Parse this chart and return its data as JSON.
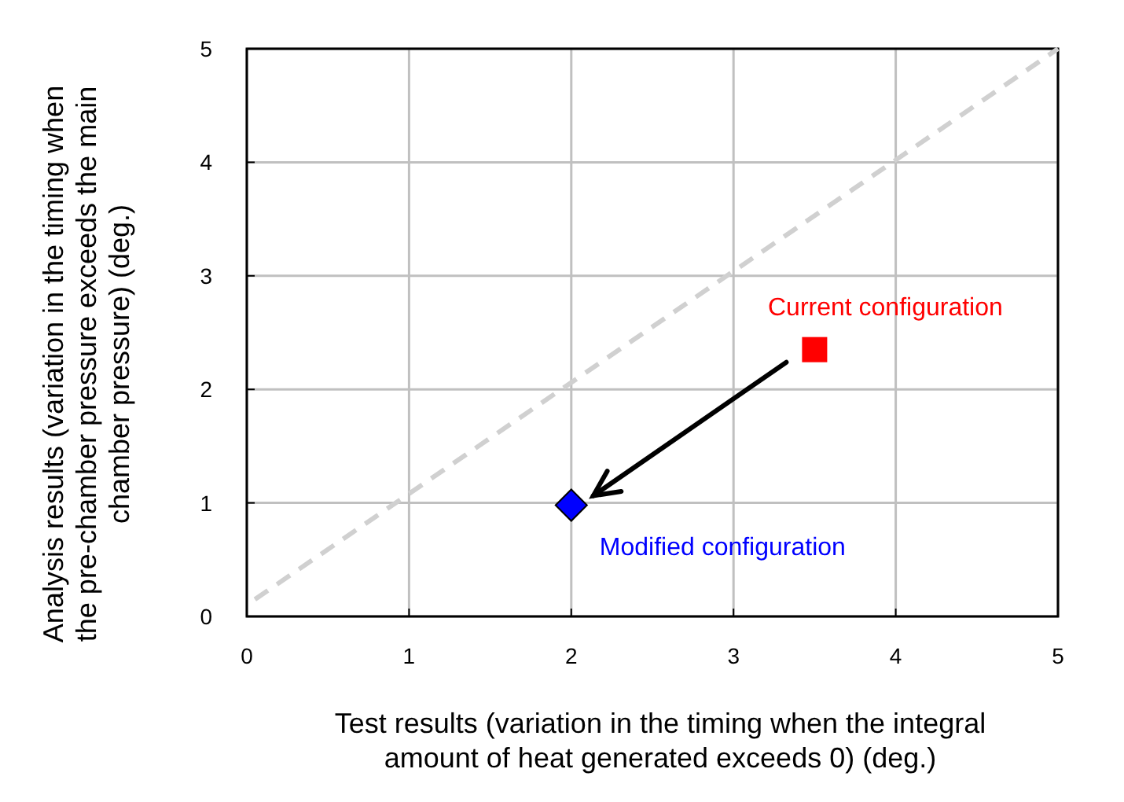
{
  "chart_data": {
    "type": "scatter",
    "xlabel": "Test results (variation in the timing when the integral amount of heat generated exceeds 0) (deg.)",
    "ylabel": "Analysis results (variation in the timing when the pre-chamber pressure exceeds the main chamber pressure) (deg.)",
    "xlim": [
      0,
      5
    ],
    "ylim": [
      0,
      5
    ],
    "xticks": [
      0,
      1,
      2,
      3,
      4,
      5
    ],
    "yticks": [
      0,
      1,
      2,
      3,
      4,
      5
    ],
    "grid": true,
    "series": [
      {
        "type": "line",
        "color": "#d0d0d0",
        "line_style": "dashed",
        "marker": "none",
        "x": [
          0.05,
          5
        ],
        "values": [
          0.15,
          5
        ]
      },
      {
        "name": "Current configuration",
        "color": "#ff0000",
        "marker": "square",
        "x": [
          3.5
        ],
        "values": [
          2.35
        ]
      },
      {
        "name": "Modified configuration",
        "color": "#0000ff",
        "marker": "diamond",
        "x": [
          2
        ],
        "values": [
          0.98
        ]
      }
    ]
  }
}
